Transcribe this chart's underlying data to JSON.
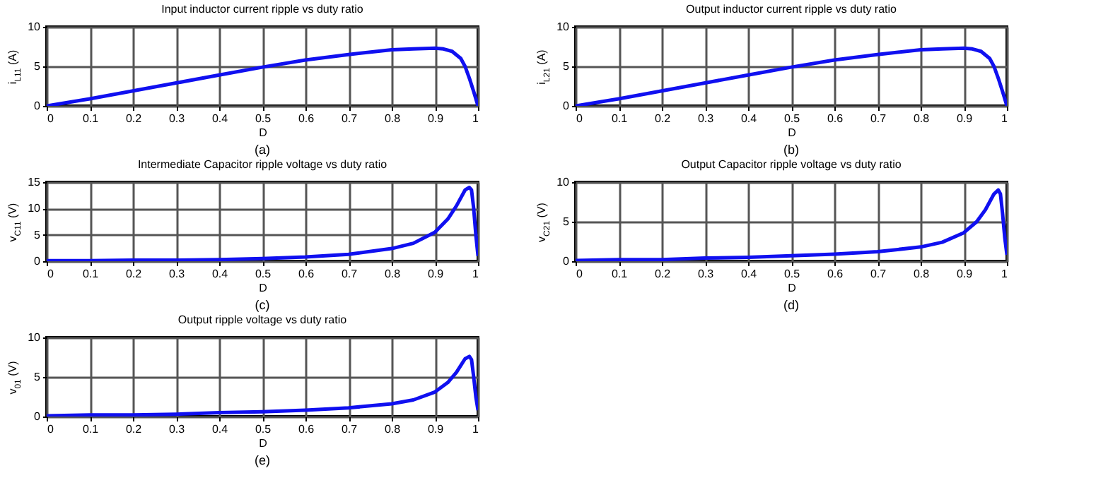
{
  "chart_data": [
    {
      "type": "line",
      "title": "Input inductor current ripple vs duty ratio",
      "xlabel": "D",
      "ylabel": "i$_{L11}$ (A)",
      "annotations": [
        "(a)"
      ],
      "x": [
        0,
        0.1,
        0.2,
        0.3,
        0.4,
        0.5,
        0.6,
        0.7,
        0.8,
        0.85,
        0.9,
        0.92,
        0.94,
        0.96,
        0.97,
        0.98,
        0.99,
        1
      ],
      "series": [
        {
          "color": "#1010f0",
          "values": [
            0,
            0.9,
            1.9,
            2.9,
            3.9,
            4.9,
            5.8,
            6.5,
            7.1,
            7.2,
            7.3,
            7.2,
            6.9,
            6.0,
            5.0,
            3.5,
            1.8,
            0
          ]
        }
      ],
      "xlim": [
        0,
        1
      ],
      "xticks": [
        0,
        0.1,
        0.2,
        0.3,
        0.4,
        0.5,
        0.6,
        0.7,
        0.8,
        0.9,
        1
      ],
      "ylim": [
        0,
        10
      ],
      "yticks": [
        0,
        5,
        10
      ],
      "grid": true
    },
    {
      "type": "line",
      "title": "Output inductor current ripple vs duty ratio",
      "xlabel": "D",
      "ylabel": "i$_{L21}$ (A)",
      "annotations": [
        "(b)"
      ],
      "x": [
        0,
        0.1,
        0.2,
        0.3,
        0.4,
        0.5,
        0.6,
        0.7,
        0.8,
        0.85,
        0.9,
        0.92,
        0.94,
        0.96,
        0.97,
        0.98,
        0.99,
        1
      ],
      "series": [
        {
          "color": "#1010f0",
          "values": [
            0,
            0.9,
            1.9,
            2.9,
            3.9,
            4.9,
            5.8,
            6.5,
            7.1,
            7.2,
            7.3,
            7.2,
            6.9,
            6.0,
            5.0,
            3.5,
            1.8,
            0
          ]
        }
      ],
      "xlim": [
        0,
        1
      ],
      "xticks": [
        0,
        0.1,
        0.2,
        0.3,
        0.4,
        0.5,
        0.6,
        0.7,
        0.8,
        0.9,
        1
      ],
      "ylim": [
        0,
        10
      ],
      "yticks": [
        0,
        5,
        10
      ],
      "grid": true
    },
    {
      "type": "line",
      "title": "Intermediate Capacitor ripple voltage  vs duty ratio",
      "xlabel": "D",
      "ylabel": "v$_{C11}$ (V)",
      "annotations": [
        "(c)"
      ],
      "x": [
        0,
        0.1,
        0.2,
        0.3,
        0.4,
        0.5,
        0.6,
        0.7,
        0.8,
        0.85,
        0.9,
        0.93,
        0.95,
        0.97,
        0.98,
        0.985,
        0.99,
        0.995,
        1
      ],
      "series": [
        {
          "color": "#1010f0",
          "values": [
            0.1,
            0.1,
            0.2,
            0.2,
            0.3,
            0.5,
            0.8,
            1.3,
            2.4,
            3.4,
            5.5,
            8,
            10.5,
            13.5,
            14,
            13.5,
            10,
            5,
            1
          ]
        }
      ],
      "xlim": [
        0,
        1
      ],
      "xticks": [
        0,
        0.1,
        0.2,
        0.3,
        0.4,
        0.5,
        0.6,
        0.7,
        0.8,
        0.9,
        1
      ],
      "ylim": [
        0,
        15
      ],
      "yticks": [
        0,
        5,
        10,
        15
      ],
      "grid": true
    },
    {
      "type": "line",
      "title": "Output Capacitor ripple voltage vs duty ratio",
      "xlabel": "D",
      "ylabel": "v$_{C21}$ (V)",
      "annotations": [
        "(d)"
      ],
      "x": [
        0,
        0.1,
        0.2,
        0.3,
        0.4,
        0.5,
        0.6,
        0.7,
        0.8,
        0.85,
        0.9,
        0.93,
        0.95,
        0.97,
        0.98,
        0.985,
        0.99,
        0.995,
        1
      ],
      "series": [
        {
          "color": "#1010f0",
          "values": [
            0.1,
            0.2,
            0.2,
            0.4,
            0.5,
            0.7,
            0.9,
            1.2,
            1.8,
            2.4,
            3.6,
            5,
            6.5,
            8.5,
            9,
            8.5,
            6,
            3,
            0.8
          ]
        }
      ],
      "xlim": [
        0,
        1
      ],
      "xticks": [
        0,
        0.1,
        0.2,
        0.3,
        0.4,
        0.5,
        0.6,
        0.7,
        0.8,
        0.9,
        1
      ],
      "ylim": [
        0,
        10
      ],
      "yticks": [
        0,
        5,
        10
      ],
      "grid": true
    },
    {
      "type": "line",
      "title": "Output ripple voltage vs duty ratio",
      "xlabel": "D",
      "ylabel": "v$_{01}$ (V)",
      "annotations": [
        "(e)"
      ],
      "x": [
        0,
        0.1,
        0.2,
        0.3,
        0.4,
        0.5,
        0.6,
        0.7,
        0.8,
        0.85,
        0.9,
        0.93,
        0.95,
        0.97,
        0.98,
        0.985,
        0.99,
        0.995,
        1
      ],
      "series": [
        {
          "color": "#1010f0",
          "values": [
            0.1,
            0.2,
            0.2,
            0.3,
            0.5,
            0.6,
            0.8,
            1.1,
            1.6,
            2.1,
            3.1,
            4.3,
            5.6,
            7.3,
            7.6,
            7.2,
            5,
            2.5,
            0.8
          ]
        }
      ],
      "xlim": [
        0,
        1
      ],
      "xticks": [
        0,
        0.1,
        0.2,
        0.3,
        0.4,
        0.5,
        0.6,
        0.7,
        0.8,
        0.9,
        1
      ],
      "ylim": [
        0,
        10
      ],
      "yticks": [
        0,
        5,
        10
      ],
      "grid": true
    }
  ]
}
